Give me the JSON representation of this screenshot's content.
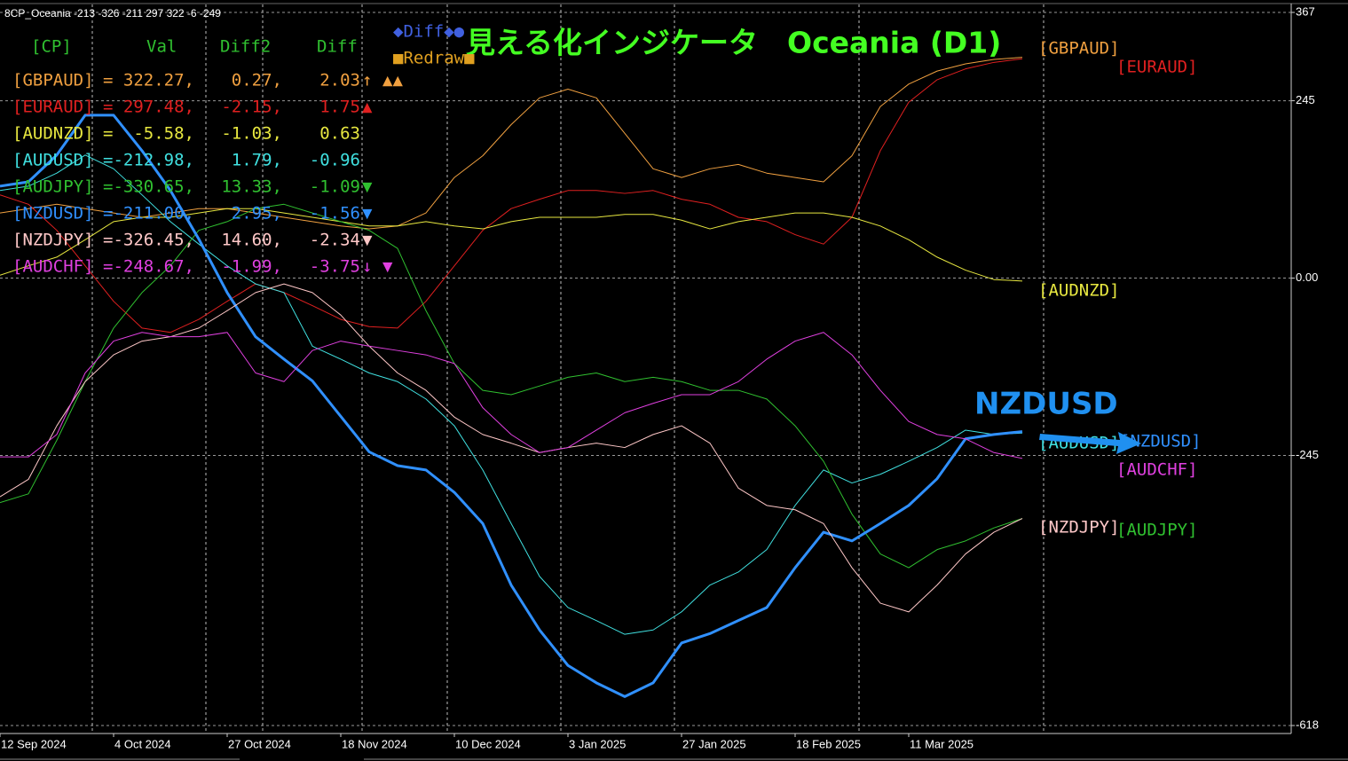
{
  "chart_data": {
    "type": "line",
    "header": "8CP_Oceania -213 -326 -211 297 322 -6 -249",
    "title": "見える化インジケータ　Oceania (D1)",
    "annotation": "NZDUSD",
    "buttons": [
      "◆Diff◆●",
      "■Redraw■"
    ],
    "table": {
      "columns": [
        "[CP]",
        "Val",
        "Diff2",
        "Diff"
      ],
      "rows": [
        {
          "value": "= 322.27,",
          "diff2": "0.27,",
          "diff": "2.03",
          "arrow": "↑",
          "signal": "▲▲"
        },
        {
          "value": "= 297.48,",
          "diff2": "-2.15,",
          "diff": "1.75",
          "signal": "▲"
        },
        {
          "value": "=  -5.58,",
          "diff2": "-1.03,",
          "diff": "0.63"
        },
        {
          "value": "=-212.98,",
          "diff2": "1.79,",
          "diff": "-0.96"
        },
        {
          "value": "=-330.65,",
          "diff2": "13.33,",
          "diff": "-1.09",
          "signal": "▼"
        },
        {
          "value": "=-211.00,",
          "diff2": "2.95,",
          "diff": "-1.56",
          "signal": "▼"
        },
        {
          "value": "=-326.45,",
          "diff2": "14.60,",
          "diff": "-2.34",
          "signal": "▼"
        },
        {
          "value": "=-248.67,",
          "diff2": "-1.99,",
          "diff": "-3.75",
          "arrow": "↓",
          "signal": "▼"
        }
      ]
    },
    "categories": [
      "12 Sep 2024",
      null,
      null,
      null,
      "4 Oct 2024",
      null,
      null,
      null,
      "27 Oct 2024",
      null,
      null,
      null,
      "18 Nov 2024",
      null,
      null,
      null,
      "10 Dec 2024",
      null,
      null,
      null,
      "3 Jan 2025",
      null,
      null,
      null,
      "27 Jan 2025",
      null,
      null,
      null,
      "18 Feb 2025",
      null,
      null,
      null,
      "11 Mar 2025",
      null,
      null,
      null,
      null
    ],
    "ylim": [
      -618,
      367
    ],
    "yticks": [
      367,
      245,
      {
        "value": 0,
        "label": "0.00"
      },
      -245,
      -618
    ],
    "grid": true,
    "series": [
      {
        "name": "[GBPAUD]",
        "color": "#f0a040",
        "values": [
          90,
          96,
          102,
          96,
          90,
          84,
          90,
          96,
          96,
          90,
          84,
          78,
          72,
          68,
          72,
          90,
          139,
          169,
          212,
          249,
          261,
          249,
          200,
          151,
          139,
          151,
          157,
          145,
          139,
          133,
          169,
          237,
          268,
          286,
          296,
          302,
          305
        ]
      },
      {
        "name": "[EURAUD]",
        "color": "#e02020",
        "values": [
          115,
          102,
          66,
          17,
          -32,
          -69,
          -75,
          -57,
          -32,
          -8,
          -20,
          -38,
          -57,
          -67,
          -69,
          -32,
          17,
          66,
          96,
          109,
          121,
          121,
          117,
          121,
          109,
          102,
          84,
          78,
          60,
          47,
          84,
          176,
          243,
          274,
          289,
          298,
          303
        ]
      },
      {
        "name": "[AUDNZD]",
        "color": "#e8e840",
        "values": [
          4,
          17,
          29,
          53,
          78,
          84,
          84,
          90,
          96,
          96,
          90,
          84,
          78,
          72,
          72,
          78,
          72,
          68,
          78,
          84,
          84,
          84,
          88,
          88,
          80,
          68,
          78,
          84,
          90,
          90,
          84,
          72,
          53,
          29,
          11,
          -2,
          -4
        ]
      },
      {
        "name": "[AUDUSD]",
        "color": "#40e0e0",
        "values": [
          121,
          127,
          145,
          170,
          151,
          115,
          78,
          47,
          17,
          -8,
          -20,
          -94,
          -112,
          -131,
          -143,
          -167,
          -204,
          -265,
          -339,
          -412,
          -455,
          -473,
          -492,
          -486,
          -461,
          -424,
          -406,
          -375,
          -314,
          -265,
          -283,
          -271,
          -253,
          -234,
          -210,
          -216,
          -214
        ]
      },
      {
        "name": "[AUDJPY]",
        "color": "#30c030",
        "values": [
          -310,
          -298,
          -224,
          -143,
          -69,
          -20,
          17,
          66,
          78,
          96,
          102,
          90,
          78,
          66,
          41,
          -45,
          -118,
          -155,
          -161,
          -149,
          -137,
          -131,
          -143,
          -137,
          -143,
          -155,
          -155,
          -167,
          -204,
          -253,
          -326,
          -381,
          -400,
          -375,
          -363,
          -345,
          -332
        ]
      },
      {
        "name": "[NZDUSD]",
        "color": "#3090ff",
        "values": [
          127,
          133,
          170,
          225,
          225,
          176,
          121,
          54,
          -20,
          -81,
          -112,
          -142,
          -191,
          -240,
          -259,
          -265,
          -296,
          -339,
          -424,
          -486,
          -535,
          -559,
          -578,
          -559,
          -504,
          -491,
          -473,
          -455,
          -400,
          -351,
          -363,
          -339,
          -314,
          -277,
          -222,
          -216,
          -212
        ]
      },
      {
        "name": "[NZDJPY]",
        "color": "#ffc8c8",
        "values": [
          -302,
          -278,
          -204,
          -143,
          -106,
          -87,
          -81,
          -69,
          -45,
          -20,
          -8,
          -20,
          -51,
          -94,
          -131,
          -155,
          -192,
          -216,
          -228,
          -241,
          -234,
          -228,
          -234,
          -216,
          -204,
          -228,
          -290,
          -314,
          -320,
          -339,
          -400,
          -449,
          -461,
          -424,
          -381,
          -351,
          -332
        ]
      },
      {
        "name": "[AUDCHF]",
        "color": "#e040e0",
        "values": [
          -247,
          -247,
          -216,
          -131,
          -87,
          -75,
          -81,
          -81,
          -75,
          -131,
          -143,
          -100,
          -87,
          -94,
          -100,
          -106,
          -118,
          -179,
          -216,
          -241,
          -234,
          -210,
          -186,
          -173,
          -161,
          -161,
          -143,
          -112,
          -87,
          -75,
          -106,
          -155,
          -198,
          -216,
          -222,
          -241,
          -249
        ]
      }
    ]
  }
}
